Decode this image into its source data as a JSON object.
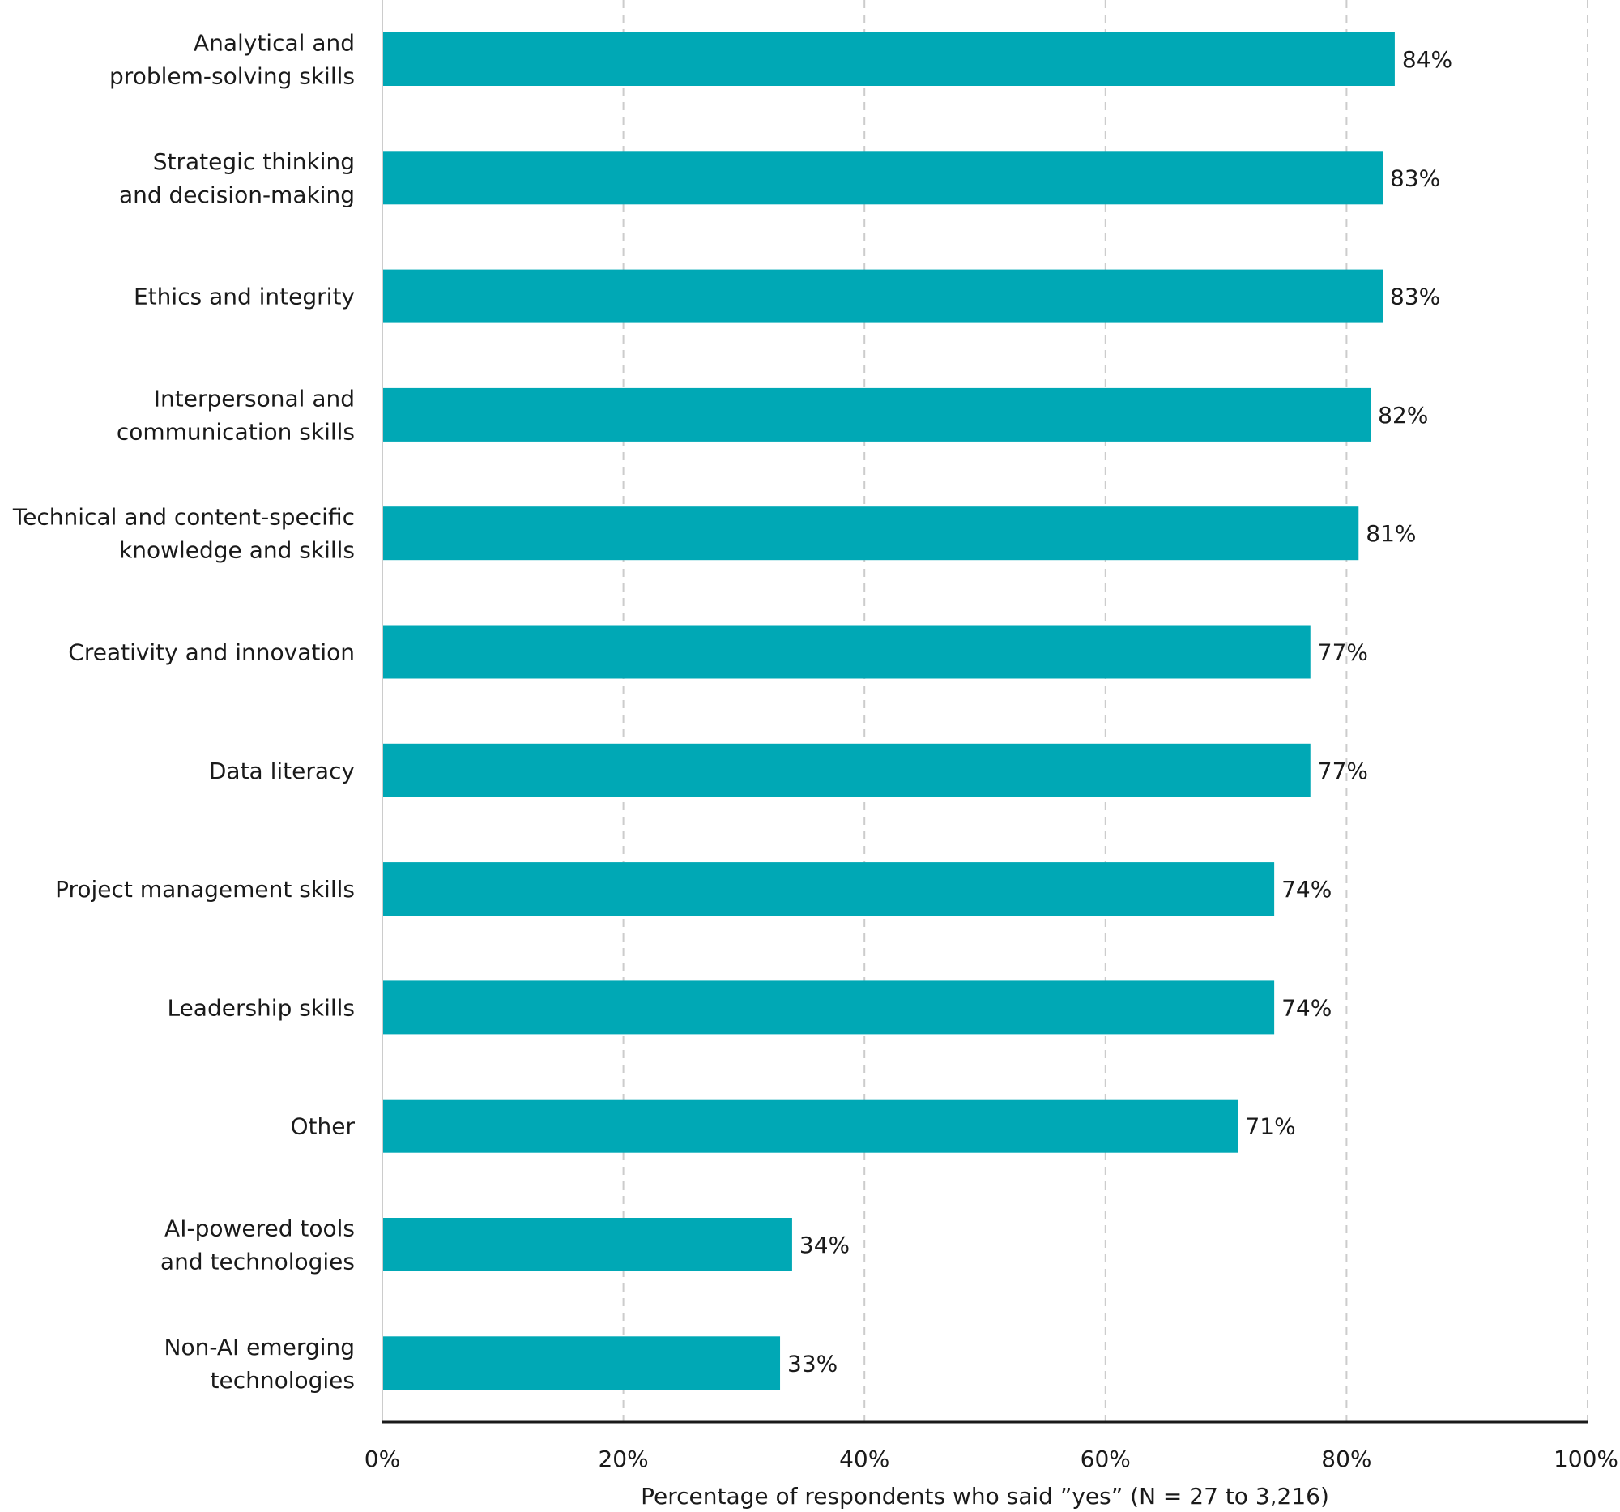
{
  "chart_data": {
    "type": "bar",
    "orientation": "horizontal",
    "title": "",
    "xlabel": "Percentage of respondents who said ”yes” (N = 27 to 3,216)",
    "ylabel": "",
    "xlim": [
      0,
      100
    ],
    "grid": true,
    "bar_color": "#00A8B5",
    "categories": [
      [
        "Analytical and",
        "problem-solving skills"
      ],
      [
        "Strategic thinking",
        "and decision-making"
      ],
      [
        "Ethics and integrity"
      ],
      [
        "Interpersonal and",
        "communication skills"
      ],
      [
        "Technical and content-specific",
        "knowledge and skills"
      ],
      [
        "Creativity and innovation"
      ],
      [
        "Data literacy"
      ],
      [
        "Project management skills"
      ],
      [
        "Leadership skills"
      ],
      [
        "Other"
      ],
      [
        "AI-powered tools",
        "and technologies"
      ],
      [
        "Non-AI emerging",
        "technologies"
      ]
    ],
    "values": [
      84,
      83,
      83,
      82,
      81,
      77,
      77,
      74,
      74,
      71,
      34,
      33
    ],
    "value_labels": [
      "84%",
      "83%",
      "83%",
      "82%",
      "81%",
      "77%",
      "77%",
      "74%",
      "74%",
      "71%",
      "34%",
      "33%"
    ],
    "ticks": [
      0,
      20,
      40,
      60,
      80,
      100
    ],
    "tick_labels": [
      "0%",
      "20%",
      "40%",
      "60%",
      "80%",
      "100%"
    ]
  }
}
